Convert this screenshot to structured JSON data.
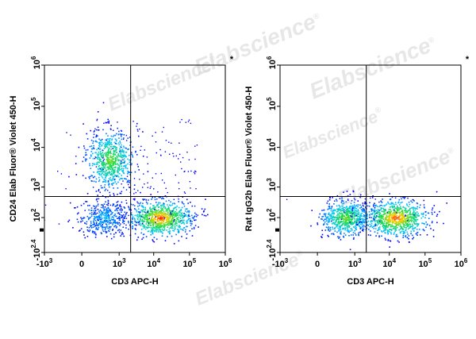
{
  "watermark": "Elabscience",
  "watermark_mark": "®",
  "colors": {
    "background": "#ffffff",
    "axes": "#000000",
    "gate": "#000000",
    "density_low": "#0000ff",
    "density_mid": "#00c8ff",
    "density_high": "#ffd000",
    "density_peak": "#ff2000",
    "watermark": "#d4d4d4"
  },
  "chart_data": [
    {
      "type": "scatter",
      "panel_marker": "*",
      "xlabel": "CD3 APC-H",
      "ylabel": "CD24 Elab Fluor® Violet 450-H",
      "xscale": "biexponential",
      "yscale": "biexponential",
      "xlim": [
        "-10^3",
        "10^6"
      ],
      "ylim": [
        "-10^2.4",
        "10^6"
      ],
      "x_ticks": [
        {
          "base": "-10",
          "exp": "3"
        },
        {
          "base": "0",
          "exp": ""
        },
        {
          "base": "10",
          "exp": "3"
        },
        {
          "base": "10",
          "exp": "4"
        },
        {
          "base": "10",
          "exp": "5"
        },
        {
          "base": "10",
          "exp": "6"
        }
      ],
      "y_ticks": [
        {
          "base": "-10",
          "exp": "2.4"
        },
        {
          "base": "10",
          "exp": "2"
        },
        {
          "base": "10",
          "exp": "3"
        },
        {
          "base": "10",
          "exp": "4"
        },
        {
          "base": "10",
          "exp": "5"
        },
        {
          "base": "10",
          "exp": "6"
        }
      ],
      "quadrant_gate": {
        "x": 2200,
        "y": 550
      },
      "populations": [
        {
          "name": "CD3- CD24+",
          "x_center": 500,
          "y_center": 5000,
          "relative_density": "high"
        },
        {
          "name": "CD3- CD24-",
          "x_center": 300,
          "y_center": 100,
          "relative_density": "low"
        },
        {
          "name": "CD3+ CD24-",
          "x_center": 15000,
          "y_center": 100,
          "relative_density": "very high"
        }
      ]
    },
    {
      "type": "scatter",
      "panel_marker": "*",
      "xlabel": "CD3 APC-H",
      "ylabel": "Rat IgG2b Elab Fluor® Violet 450-H",
      "xscale": "biexponential",
      "yscale": "biexponential",
      "xlim": [
        "-10^3",
        "10^6"
      ],
      "ylim": [
        "-10^2.4",
        "10^6"
      ],
      "x_ticks": [
        {
          "base": "-10",
          "exp": "3"
        },
        {
          "base": "0",
          "exp": ""
        },
        {
          "base": "10",
          "exp": "3"
        },
        {
          "base": "10",
          "exp": "4"
        },
        {
          "base": "10",
          "exp": "5"
        },
        {
          "base": "10",
          "exp": "6"
        }
      ],
      "y_ticks": [
        {
          "base": "-10",
          "exp": "2.4"
        },
        {
          "base": "10",
          "exp": "2"
        },
        {
          "base": "10",
          "exp": "3"
        },
        {
          "base": "10",
          "exp": "4"
        },
        {
          "base": "10",
          "exp": "5"
        },
        {
          "base": "10",
          "exp": "6"
        }
      ],
      "quadrant_gate": {
        "x": 2200,
        "y": 550
      },
      "populations": [
        {
          "name": "CD3- isotype",
          "x_center": 500,
          "y_center": 100,
          "relative_density": "high"
        },
        {
          "name": "CD3+ isotype",
          "x_center": 15000,
          "y_center": 100,
          "relative_density": "very high"
        }
      ]
    }
  ]
}
